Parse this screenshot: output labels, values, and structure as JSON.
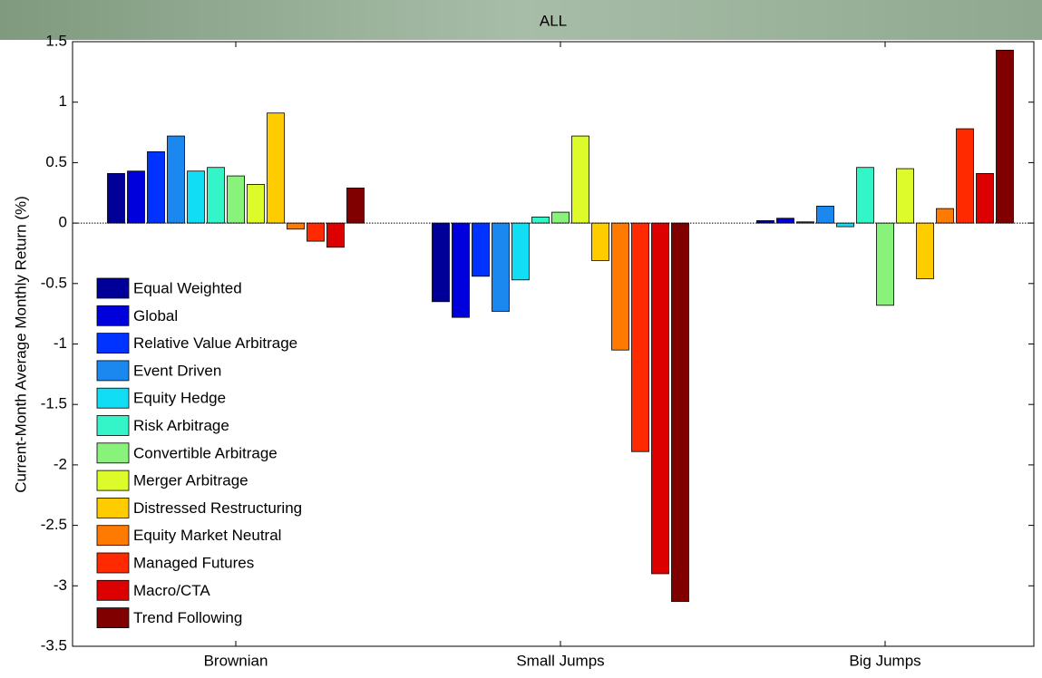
{
  "chart_data": {
    "type": "bar",
    "title": "ALL",
    "ylabel": "Current-Month Average Monthly Return (%)",
    "categories": [
      "Brownian",
      "Small Jumps",
      "Big Jumps"
    ],
    "ylim": [
      -3.5,
      1.5
    ],
    "yticks": [
      -3.5,
      -3,
      -2.5,
      -2,
      -1.5,
      -1,
      -0.5,
      0,
      0.5,
      1,
      1.5
    ],
    "series": [
      {
        "name": "Equal Weighted",
        "color": "#000099",
        "values": [
          0.41,
          -0.65,
          0.02
        ]
      },
      {
        "name": "Global",
        "color": "#0000dd",
        "values": [
          0.43,
          -0.78,
          0.04
        ]
      },
      {
        "name": "Relative Value Arbitrage",
        "color": "#0033ff",
        "values": [
          0.59,
          -0.44,
          0.01
        ]
      },
      {
        "name": "Event Driven",
        "color": "#1a88ee",
        "values": [
          0.72,
          -0.73,
          0.14
        ]
      },
      {
        "name": "Equity Hedge",
        "color": "#11ddf5",
        "values": [
          0.43,
          -0.47,
          -0.03
        ]
      },
      {
        "name": "Risk Arbitrage",
        "color": "#33f5c8",
        "values": [
          0.46,
          0.05,
          0.46
        ]
      },
      {
        "name": "Convertible Arbitrage",
        "color": "#88f27a",
        "values": [
          0.39,
          0.09,
          -0.68
        ]
      },
      {
        "name": "Merger Arbitrage",
        "color": "#ddfa2a",
        "values": [
          0.32,
          0.72,
          0.45
        ]
      },
      {
        "name": "Distressed Restructuring",
        "color": "#ffcc00",
        "values": [
          0.91,
          -0.31,
          -0.46
        ]
      },
      {
        "name": "Equity Market Neutral",
        "color": "#ff7a00",
        "values": [
          -0.05,
          -1.05,
          0.12
        ]
      },
      {
        "name": "Managed Futures",
        "color": "#ff2a00",
        "values": [
          -0.15,
          -1.89,
          0.78
        ]
      },
      {
        "name": "Macro/CTA",
        "color": "#dd0000",
        "values": [
          -0.2,
          -2.9,
          0.41
        ]
      },
      {
        "name": "Trend Following",
        "color": "#800000",
        "values": [
          0.29,
          -3.13,
          1.43
        ]
      }
    ]
  }
}
